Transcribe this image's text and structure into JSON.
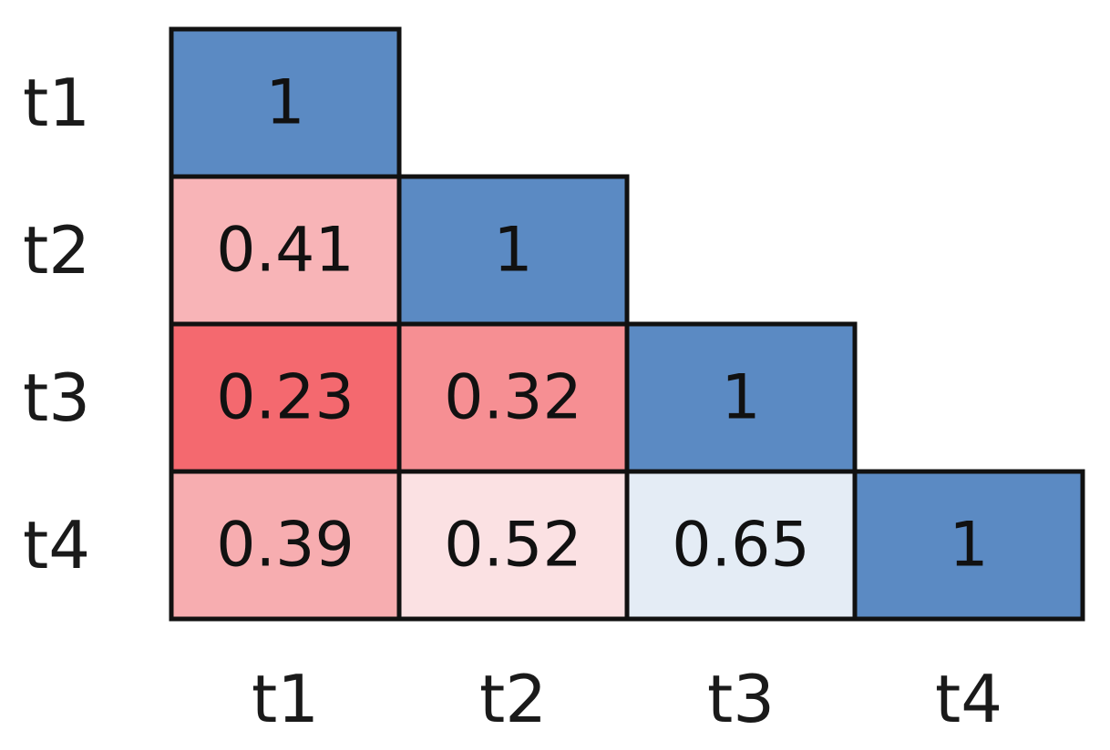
{
  "chart_data": {
    "type": "heatmap",
    "title": "",
    "xlabel": "",
    "ylabel": "",
    "rows": [
      "t1",
      "t2",
      "t3",
      "t4"
    ],
    "cols": [
      "t1",
      "t2",
      "t3",
      "t4"
    ],
    "layout": "lower-triangle",
    "grid": true,
    "legend": "none",
    "colormap": {
      "low": "#f4636b",
      "mid": "#ffffff",
      "high": "#5b8ac3",
      "range": [
        0.2,
        1.0
      ],
      "midpoint": 0.6
    },
    "cell_border_color": "#111111",
    "cells": [
      {
        "row": 0,
        "col": 0,
        "value": 1,
        "label": "1",
        "color": "#5b8ac3"
      },
      {
        "row": 1,
        "col": 0,
        "value": 0.41,
        "label": "0.41",
        "color": "#f8b4b7"
      },
      {
        "row": 1,
        "col": 1,
        "value": 1,
        "label": "1",
        "color": "#5b8ac3"
      },
      {
        "row": 2,
        "col": 0,
        "value": 0.23,
        "label": "0.23",
        "color": "#f4696f"
      },
      {
        "row": 2,
        "col": 1,
        "value": 0.32,
        "label": "0.32",
        "color": "#f68f93"
      },
      {
        "row": 2,
        "col": 2,
        "value": 1,
        "label": "1",
        "color": "#5b8ac3"
      },
      {
        "row": 3,
        "col": 0,
        "value": 0.39,
        "label": "0.39",
        "color": "#f7adb0"
      },
      {
        "row": 3,
        "col": 1,
        "value": 0.52,
        "label": "0.52",
        "color": "#fbe1e3"
      },
      {
        "row": 3,
        "col": 2,
        "value": 0.65,
        "label": "0.65",
        "color": "#e4ecf5"
      },
      {
        "row": 3,
        "col": 3,
        "value": 1,
        "label": "1",
        "color": "#5b8ac3"
      }
    ]
  }
}
